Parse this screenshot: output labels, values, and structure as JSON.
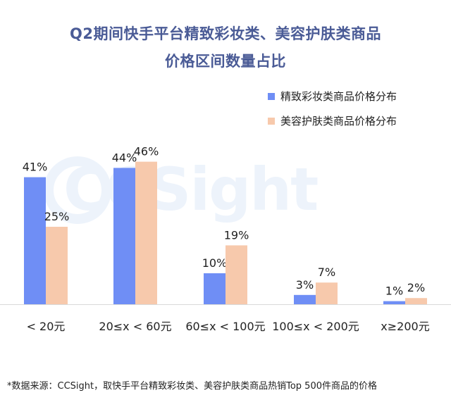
{
  "chart_data": {
    "type": "bar",
    "title": [
      "Q2期间快手平台精致彩妆类、美容护肤类商品",
      "价格区间数量占比"
    ],
    "categories": [
      "< 20元",
      "20≤x < 60元",
      "60≤x < 100元",
      "100≤x < 200元",
      "x≥200元"
    ],
    "series": [
      {
        "name": "精致彩妆类商品价格分布",
        "values": [
          41,
          44,
          10,
          3,
          1
        ],
        "labels": [
          "41%",
          "44%",
          "10%",
          "3%",
          "1%"
        ],
        "color": "#6f8ef5"
      },
      {
        "name": "美容护肤类商品价格分布",
        "values": [
          25,
          46,
          19,
          7,
          2
        ],
        "labels": [
          "25%",
          "46%",
          "19%",
          "7%",
          "2%"
        ],
        "color": "#f7c9ac"
      }
    ],
    "ylim": [
      0,
      50
    ],
    "legend": "top-right",
    "grid": false
  },
  "watermark": "CCSight",
  "footnote": "*数据来源：CCSight，取快手平台精致彩妆类、美容护肤类商品热销Top 500件商品的价格"
}
